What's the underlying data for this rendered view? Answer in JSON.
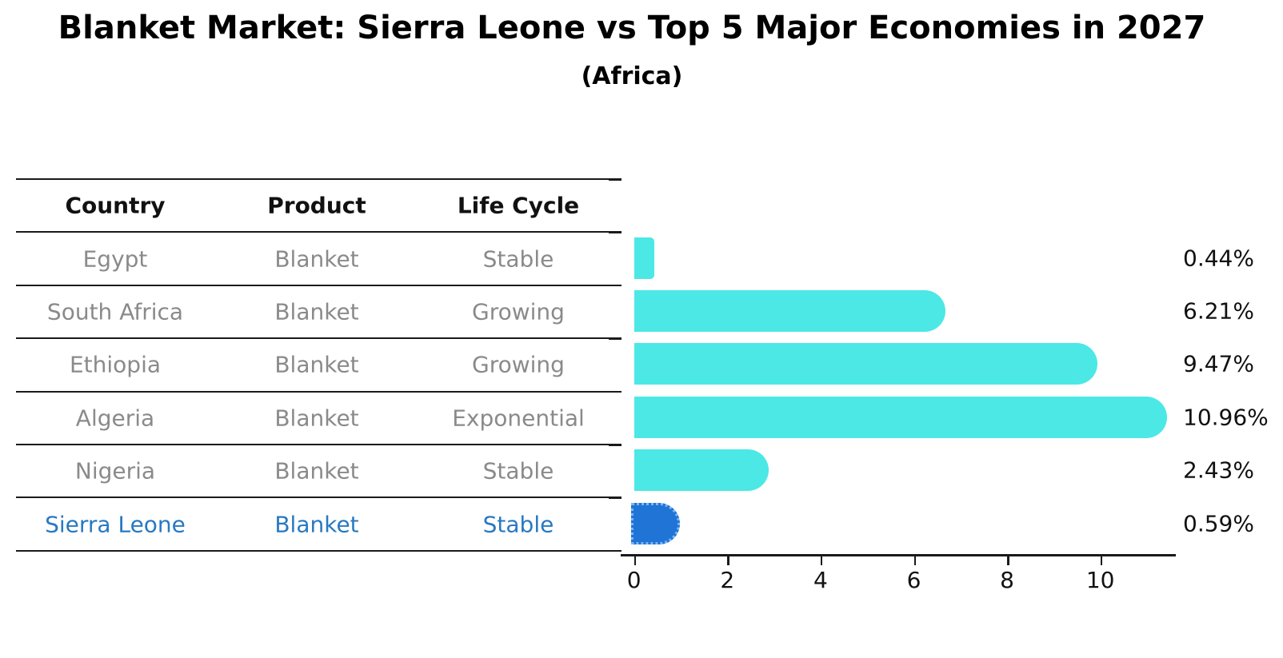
{
  "title": "Blanket Market: Sierra Leone vs Top 5 Major Economies in 2027",
  "subtitle": "(Africa)",
  "colors": {
    "bar_default": "#4BE8E6",
    "bar_highlight": "#1F74D6",
    "bar_highlight_border": "#7FB5F5",
    "highlight_text": "#2879C2",
    "row_text": "#8A8A8A",
    "header_text": "#111111",
    "line": "#1A1A1A"
  },
  "table": {
    "headers": [
      "Country",
      "Product",
      "Life Cycle"
    ],
    "rows": [
      {
        "country": "Egypt",
        "product": "Blanket",
        "life_cycle": "Stable",
        "highlighted": false
      },
      {
        "country": "South Africa",
        "product": "Blanket",
        "life_cycle": "Growing",
        "highlighted": false
      },
      {
        "country": "Ethiopia",
        "product": "Blanket",
        "life_cycle": "Growing",
        "highlighted": false
      },
      {
        "country": "Algeria",
        "product": "Blanket",
        "life_cycle": "Exponential",
        "highlighted": false
      },
      {
        "country": "Nigeria",
        "product": "Blanket",
        "life_cycle": "Stable",
        "highlighted": false
      },
      {
        "country": "Sierra Leone",
        "product": "Blanket",
        "life_cycle": "Stable",
        "highlighted": true
      }
    ]
  },
  "chart_data": {
    "type": "bar",
    "orientation": "horizontal",
    "title": "Blanket Market: Sierra Leone vs Top 5 Major Economies in 2027 (Africa)",
    "categories": [
      "Egypt",
      "South Africa",
      "Ethiopia",
      "Algeria",
      "Nigeria",
      "Sierra Leone"
    ],
    "values": [
      0.44,
      6.21,
      9.47,
      10.96,
      2.43,
      0.59
    ],
    "value_labels": [
      "0.44%",
      "6.21%",
      "9.47%",
      "10.96%",
      "2.43%",
      "0.59%"
    ],
    "highlight_category": "Sierra Leone",
    "x_ticks": [
      0,
      2,
      4,
      6,
      8,
      10
    ],
    "xlim": [
      0,
      11.6
    ],
    "xlabel": "",
    "ylabel": "",
    "grid": false,
    "legend": false
  }
}
